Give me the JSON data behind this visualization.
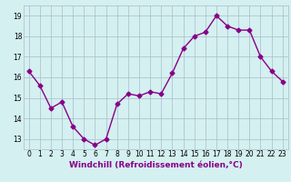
{
  "x": [
    0,
    1,
    2,
    3,
    4,
    5,
    6,
    7,
    8,
    9,
    10,
    11,
    12,
    13,
    14,
    15,
    16,
    17,
    18,
    19,
    20,
    21,
    22,
    23
  ],
  "y": [
    16.3,
    15.6,
    14.5,
    14.8,
    13.6,
    13.0,
    12.7,
    13.0,
    14.7,
    15.2,
    15.1,
    15.3,
    15.2,
    16.2,
    17.4,
    18.0,
    18.2,
    19.0,
    18.5,
    18.3,
    18.3,
    17.0,
    16.3,
    15.8
  ],
  "line_color": "#880088",
  "marker": "D",
  "marker_size": 2.5,
  "bg_color": "#d4f0f0",
  "grid_color": "#aabbcc",
  "xlabel": "Windchill (Refroidissement éolien,°C)",
  "xlabel_fontsize": 6.5,
  "ylim": [
    12.5,
    19.5
  ],
  "yticks": [
    13,
    14,
    15,
    16,
    17,
    18,
    19
  ],
  "xticks": [
    0,
    1,
    2,
    3,
    4,
    5,
    6,
    7,
    8,
    9,
    10,
    11,
    12,
    13,
    14,
    15,
    16,
    17,
    18,
    19,
    20,
    21,
    22,
    23
  ],
  "tick_fontsize": 5.5,
  "line_width": 1.0
}
